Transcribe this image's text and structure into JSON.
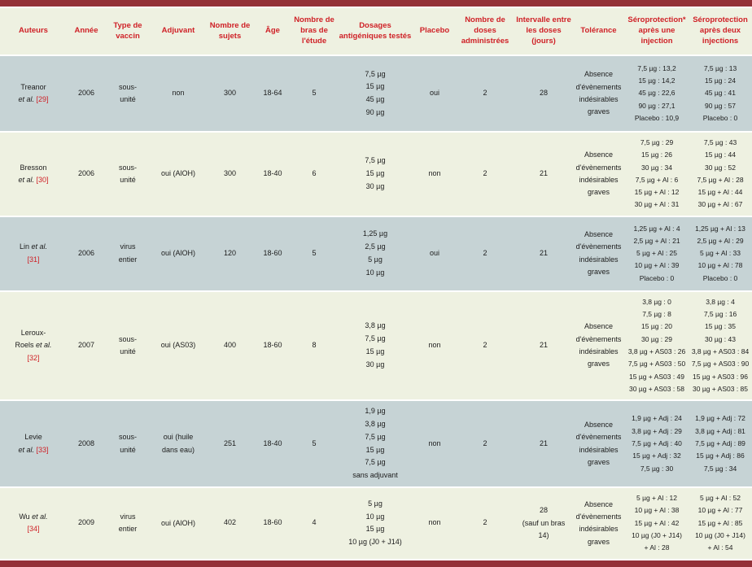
{
  "colors": {
    "bar": "#943138",
    "accent_red": "#cf2127",
    "shaded_row": "#c6d3d5",
    "light_row": "#eef1e1"
  },
  "table": {
    "columns": [
      {
        "key": "authors",
        "field": "author_lines",
        "label": "Auteurs"
      },
      {
        "key": "year",
        "field": "year",
        "label": "Année"
      },
      {
        "key": "vaccine-type",
        "field": "vaccine_type",
        "label": "Type de vaccin"
      },
      {
        "key": "adjuvant",
        "field": "adjuvant",
        "label": "Adjuvant"
      },
      {
        "key": "subjects",
        "field": "subjects",
        "label": "Nombre de sujets"
      },
      {
        "key": "age",
        "field": "age",
        "label": "Âge"
      },
      {
        "key": "study-arms",
        "field": "arms",
        "label": "Nombre de bras de l'étude"
      },
      {
        "key": "dosages",
        "field": "dosages",
        "label": "Dosages antigéniques testés",
        "dosage": true
      },
      {
        "key": "placebo",
        "field": "placebo",
        "label": "Placebo"
      },
      {
        "key": "doses",
        "field": "doses",
        "label": "Nombre de doses administrées"
      },
      {
        "key": "interval",
        "field": "interval",
        "label": "Intervalle entre les doses (jours)"
      },
      {
        "key": "tolerance",
        "field": "tolerance",
        "label": "Tolérance"
      },
      {
        "key": "seroprotection-one",
        "field": "sero_one",
        "label": "Séroprotection* après une injection",
        "small": true
      },
      {
        "key": "seroprotection-two",
        "field": "sero_two",
        "label": "Séroprotection après deux injections",
        "small": true
      }
    ],
    "rows": [
      {
        "author_lines": [
          [
            {
              "t": "Treanor",
              "s": "plain"
            }
          ],
          [
            {
              "t": "et al.",
              "s": "italic"
            },
            {
              "t": " [29]",
              "s": "ref"
            }
          ]
        ],
        "year": "2006",
        "vaccine_type": [
          "sous-",
          "unité"
        ],
        "adjuvant": [
          "non"
        ],
        "subjects": "300",
        "age": "18-64",
        "arms": "5",
        "dosages": [
          "7,5 µg",
          "15 µg",
          "45 µg",
          "90 µg"
        ],
        "placebo": "oui",
        "doses": "2",
        "interval": [
          "28"
        ],
        "tolerance": [
          "Absence",
          "d'évènements",
          "indésirables",
          "graves"
        ],
        "sero_one": [
          "7,5 µg : 13,2",
          "15 µg : 14,2",
          "45 µg : 22,6",
          "90 µg : 27,1",
          "Placebo : 10,9"
        ],
        "sero_two": [
          "7,5 µg : 13",
          "15 µg : 24",
          "45 µg : 41",
          "90 µg : 57",
          "Placebo : 0"
        ]
      },
      {
        "author_lines": [
          [
            {
              "t": "Bresson",
              "s": "plain"
            }
          ],
          [
            {
              "t": "et al.",
              "s": "italic"
            },
            {
              "t": " [30]",
              "s": "ref"
            }
          ]
        ],
        "year": "2006",
        "vaccine_type": [
          "sous-",
          "unité"
        ],
        "adjuvant": [
          "oui (AlOH)"
        ],
        "subjects": "300",
        "age": "18-40",
        "arms": "6",
        "dosages": [
          "7,5 µg",
          "15 µg",
          "30 µg"
        ],
        "placebo": "non",
        "doses": "2",
        "interval": [
          "21"
        ],
        "tolerance": [
          "Absence",
          "d'évènements",
          "indésirables",
          "graves"
        ],
        "sero_one": [
          "7,5 µg : 29",
          "15 µg : 26",
          "30 µg : 34",
          "7,5 µg + Al : 6",
          "15 µg + Al : 12",
          "30 µg + Al : 31"
        ],
        "sero_two": [
          "7,5 µg : 43",
          "15 µg : 44",
          "30 µg : 52",
          "7,5 µg + Al : 28",
          "15 µg + Al : 44",
          "30 µg + Al : 67"
        ]
      },
      {
        "author_lines": [
          [
            {
              "t": "Lin ",
              "s": "plain"
            },
            {
              "t": "et al.",
              "s": "italic"
            }
          ],
          [
            {
              "t": "[31]",
              "s": "ref"
            }
          ]
        ],
        "year": "2006",
        "vaccine_type": [
          "virus",
          "entier"
        ],
        "adjuvant": [
          "oui (AlOH)"
        ],
        "subjects": "120",
        "age": "18-60",
        "arms": "5",
        "dosages": [
          "1,25 µg",
          "2,5 µg",
          "5 µg",
          "10 µg"
        ],
        "placebo": "oui",
        "doses": "2",
        "interval": [
          "21"
        ],
        "tolerance": [
          "Absence",
          "d'évènements",
          "indésirables",
          "graves"
        ],
        "sero_one": [
          "1,25 µg + Al : 4",
          "2,5 µg + Al : 21",
          "5 µg + Al : 25",
          "10 µg + Al : 39",
          "Placebo : 0"
        ],
        "sero_two": [
          "1,25 µg + Al : 13",
          "2,5 µg + Al : 29",
          "5 µg + Al : 33",
          "10 µg + Al : 78",
          "Placebo : 0"
        ]
      },
      {
        "author_lines": [
          [
            {
              "t": "Leroux-",
              "s": "plain"
            }
          ],
          [
            {
              "t": "Roels ",
              "s": "plain"
            },
            {
              "t": "et al.",
              "s": "italic"
            }
          ],
          [
            {
              "t": "[32]",
              "s": "ref"
            }
          ]
        ],
        "year": "2007",
        "vaccine_type": [
          "sous-",
          "unité"
        ],
        "adjuvant": [
          "oui (AS03)"
        ],
        "subjects": "400",
        "age": "18-60",
        "arms": "8",
        "dosages": [
          "3,8 µg",
          "7,5 µg",
          "15 µg",
          "30 µg"
        ],
        "placebo": "non",
        "doses": "2",
        "interval": [
          "21"
        ],
        "tolerance": [
          "Absence",
          "d'évènements",
          "indésirables",
          "graves"
        ],
        "sero_one": [
          "3,8 µg : 0",
          "7,5 µg : 8",
          "15 µg : 20",
          "30 µg : 29",
          "3,8 µg + AS03 : 26",
          "7,5 µg + AS03 : 50",
          "15 µg + AS03 : 49",
          "30 µg + AS03 : 58"
        ],
        "sero_two": [
          "3,8 µg : 4",
          "7,5 µg : 16",
          "15 µg : 35",
          "30 µg : 43",
          "3,8 µg + AS03 : 84",
          "7,5 µg + AS03 : 90",
          "15 µg + AS03 : 96",
          "30 µg + AS03 : 85"
        ]
      },
      {
        "author_lines": [
          [
            {
              "t": "Levie",
              "s": "plain"
            }
          ],
          [
            {
              "t": "et al.",
              "s": "italic"
            },
            {
              "t": " [33]",
              "s": "ref"
            }
          ]
        ],
        "year": "2008",
        "vaccine_type": [
          "sous-",
          "unité"
        ],
        "adjuvant": [
          "oui (huile",
          "dans eau)"
        ],
        "subjects": "251",
        "age": "18-40",
        "arms": "5",
        "dosages": [
          "1,9 µg",
          "3,8 µg",
          "7,5 µg",
          "15 µg",
          "7,5 µg",
          "sans adjuvant"
        ],
        "placebo": "non",
        "doses": "2",
        "interval": [
          "21"
        ],
        "tolerance": [
          "Absence",
          "d'évènements",
          "indésirables",
          "graves"
        ],
        "sero_one": [
          "1,9 µg + Adj : 24",
          "3,8 µg + Adj : 29",
          "7,5 µg + Adj : 40",
          "15 µg + Adj : 32",
          "7,5 µg : 30"
        ],
        "sero_two": [
          "1,9 µg + Adj : 72",
          "3,8 µg + Adj : 81",
          "7,5 µg + Adj : 89",
          "15 µg + Adj : 86",
          "7,5 µg : 34"
        ]
      },
      {
        "author_lines": [
          [
            {
              "t": "Wu ",
              "s": "plain"
            },
            {
              "t": "et al.",
              "s": "italic"
            }
          ],
          [
            {
              "t": "[34]",
              "s": "ref"
            }
          ]
        ],
        "year": "2009",
        "vaccine_type": [
          "virus",
          "entier"
        ],
        "adjuvant": [
          "oui (AlOH)"
        ],
        "subjects": "402",
        "age": "18-60",
        "arms": "4",
        "dosages": [
          "5 µg",
          "10 µg",
          "15 µg",
          "10 µg (J0 + J14)"
        ],
        "placebo": "non",
        "doses": "2",
        "interval": [
          "28",
          "(sauf un bras",
          "14)"
        ],
        "tolerance": [
          "Absence",
          "d'évènements",
          "indésirables",
          "graves"
        ],
        "sero_one": [
          "5 µg + Al : 12",
          "10 µg + Al : 38",
          "15 µg + Al : 42",
          "10 µg (J0 + J14)",
          "+ Al : 28"
        ],
        "sero_two": [
          "5 µg + Al : 52",
          "10 µg + Al : 77",
          "15 µg + Al : 85",
          "10 µg (J0 + J14)",
          "+ Al : 54"
        ]
      }
    ]
  }
}
